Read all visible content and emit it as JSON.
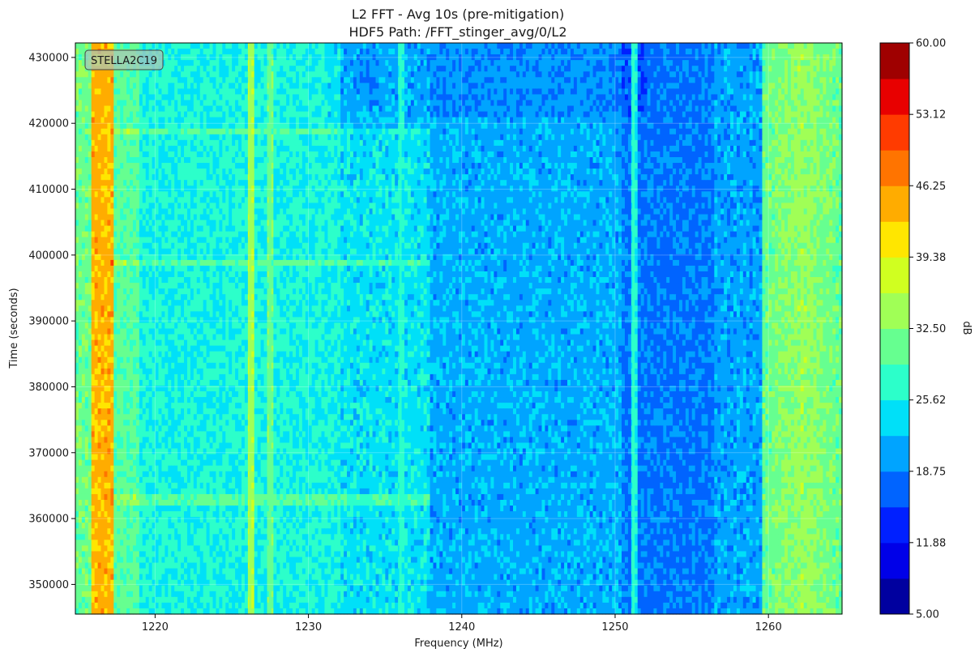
{
  "chart_data": {
    "type": "heatmap",
    "title": "L2 FFT - Avg 10s (pre-mitigation)",
    "subtitle": "HDF5 Path: /FFT_stinger_avg/0/L2",
    "xlabel": "Frequency (MHz)",
    "ylabel": "Time (seconds)",
    "xlim": [
      1214.8,
      1264.8
    ],
    "ylim": [
      345500,
      432200
    ],
    "x_ticks": [
      1220,
      1230,
      1240,
      1250,
      1260
    ],
    "y_ticks": [
      350000,
      360000,
      370000,
      380000,
      390000,
      400000,
      410000,
      420000,
      430000
    ],
    "grid": true,
    "annotation": "STELLA2C19",
    "colorbar": {
      "label": "dB",
      "min": 5.0,
      "max": 60.0,
      "tick_values": [
        5.0,
        11.88,
        18.75,
        25.62,
        32.5,
        39.38,
        46.25,
        53.12,
        60.0
      ],
      "tick_labels": [
        "5.00",
        "11.88",
        "18.75",
        "25.62",
        "32.50",
        "39.38",
        "46.25",
        "53.12",
        "60.00"
      ],
      "colors": [
        "#00009f",
        "#0000e8",
        "#0020ff",
        "#0064ff",
        "#00a4ff",
        "#00e0f8",
        "#2cffca",
        "#66ff90",
        "#a0ff56",
        "#d0ff20",
        "#ffe600",
        "#ffac00",
        "#ff7400",
        "#ff3b00",
        "#e80000",
        "#9f0000"
      ]
    },
    "features": [
      {
        "name": "carrier-band",
        "x_from": 1215.8,
        "x_to": 1217.2,
        "level_db": 44
      },
      {
        "name": "high-band-edge",
        "x_from": 1259.6,
        "x_to": 1264.8,
        "level_db": 34
      },
      {
        "name": "low-power-trough",
        "x_from": 1250.5,
        "x_to": 1256.5,
        "level_db": 18
      },
      {
        "name": "spur",
        "x": 1226.2,
        "level_db": 35
      },
      {
        "name": "spur",
        "x": 1227.5,
        "level_db": 31
      },
      {
        "name": "spur",
        "x": 1236.0,
        "level_db": 26
      },
      {
        "name": "spur",
        "x": 1251.2,
        "level_db": 26
      },
      {
        "name": "event",
        "y": 418500
      },
      {
        "name": "event",
        "y": 399000
      },
      {
        "name": "event",
        "y": 363000
      }
    ]
  }
}
